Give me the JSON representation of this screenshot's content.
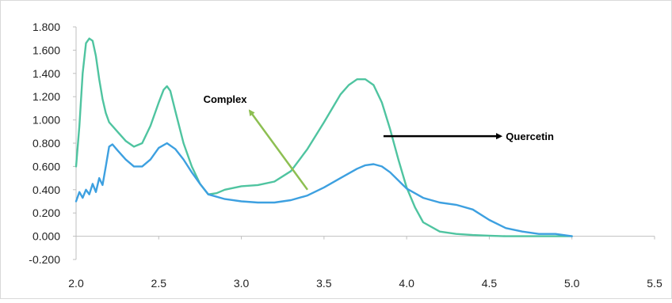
{
  "chart_data": {
    "type": "line",
    "title": "",
    "xlabel": "",
    "ylabel": "",
    "xlim": [
      2.0,
      5.5
    ],
    "ylim": [
      -0.2,
      1.8
    ],
    "x_ticks": [
      "2.0",
      "2.5",
      "3.0",
      "3.5",
      "4.0",
      "4.5",
      "5.0",
      "5.5"
    ],
    "y_ticks": [
      "-0.200",
      "0.000",
      "0.200",
      "0.400",
      "0.600",
      "0.800",
      "1.000",
      "1.200",
      "1.400",
      "1.600",
      "1.800"
    ],
    "grid": false,
    "legend": "none",
    "series": [
      {
        "color": "#4fc4a0",
        "x": [
          2.0,
          2.02,
          2.04,
          2.06,
          2.08,
          2.1,
          2.12,
          2.14,
          2.16,
          2.18,
          2.2,
          2.25,
          2.3,
          2.35,
          2.4,
          2.45,
          2.5,
          2.53,
          2.55,
          2.57,
          2.6,
          2.65,
          2.7,
          2.75,
          2.8,
          2.85,
          2.9,
          3.0,
          3.1,
          3.2,
          3.3,
          3.4,
          3.5,
          3.6,
          3.65,
          3.7,
          3.75,
          3.8,
          3.85,
          3.9,
          3.95,
          4.0,
          4.05,
          4.1,
          4.2,
          4.3,
          4.4,
          4.5,
          4.6,
          4.7,
          4.8,
          4.9,
          5.0
        ],
        "y": [
          0.6,
          0.95,
          1.4,
          1.66,
          1.7,
          1.68,
          1.55,
          1.35,
          1.18,
          1.06,
          0.98,
          0.9,
          0.82,
          0.77,
          0.8,
          0.95,
          1.15,
          1.26,
          1.29,
          1.25,
          1.08,
          0.8,
          0.6,
          0.45,
          0.36,
          0.37,
          0.4,
          0.43,
          0.44,
          0.47,
          0.56,
          0.75,
          0.98,
          1.22,
          1.3,
          1.35,
          1.35,
          1.3,
          1.15,
          0.92,
          0.66,
          0.42,
          0.25,
          0.12,
          0.04,
          0.02,
          0.01,
          0.005,
          0.0,
          0.0,
          0.0,
          0.0,
          0.0
        ]
      },
      {
        "color": "#3da0e0",
        "x": [
          2.0,
          2.02,
          2.04,
          2.06,
          2.08,
          2.1,
          2.12,
          2.14,
          2.16,
          2.18,
          2.2,
          2.22,
          2.25,
          2.3,
          2.35,
          2.4,
          2.45,
          2.5,
          2.55,
          2.6,
          2.65,
          2.7,
          2.75,
          2.8,
          2.9,
          3.0,
          3.1,
          3.2,
          3.3,
          3.4,
          3.5,
          3.6,
          3.7,
          3.75,
          3.8,
          3.85,
          3.9,
          4.0,
          4.1,
          4.2,
          4.3,
          4.4,
          4.5,
          4.6,
          4.7,
          4.8,
          4.9,
          5.0
        ],
        "y": [
          0.3,
          0.38,
          0.33,
          0.4,
          0.36,
          0.45,
          0.38,
          0.5,
          0.44,
          0.6,
          0.77,
          0.79,
          0.74,
          0.66,
          0.6,
          0.6,
          0.66,
          0.76,
          0.8,
          0.75,
          0.66,
          0.55,
          0.45,
          0.36,
          0.32,
          0.3,
          0.29,
          0.29,
          0.31,
          0.35,
          0.42,
          0.5,
          0.58,
          0.61,
          0.62,
          0.6,
          0.55,
          0.41,
          0.33,
          0.29,
          0.27,
          0.23,
          0.14,
          0.07,
          0.04,
          0.02,
          0.02,
          0.0
        ]
      }
    ],
    "annotations": [
      {
        "text": "Complex",
        "color": "#8dbf52",
        "arrow_from": [
          3.4,
          0.4
        ],
        "arrow_to": [
          3.05,
          1.08
        ],
        "label_at": [
          2.77,
          1.18
        ]
      },
      {
        "text": "Quercetin",
        "color": "#000000",
        "arrow_from": [
          3.86,
          0.86
        ],
        "arrow_to": [
          4.57,
          0.86
        ],
        "label_at": [
          4.6,
          0.86
        ]
      }
    ]
  }
}
